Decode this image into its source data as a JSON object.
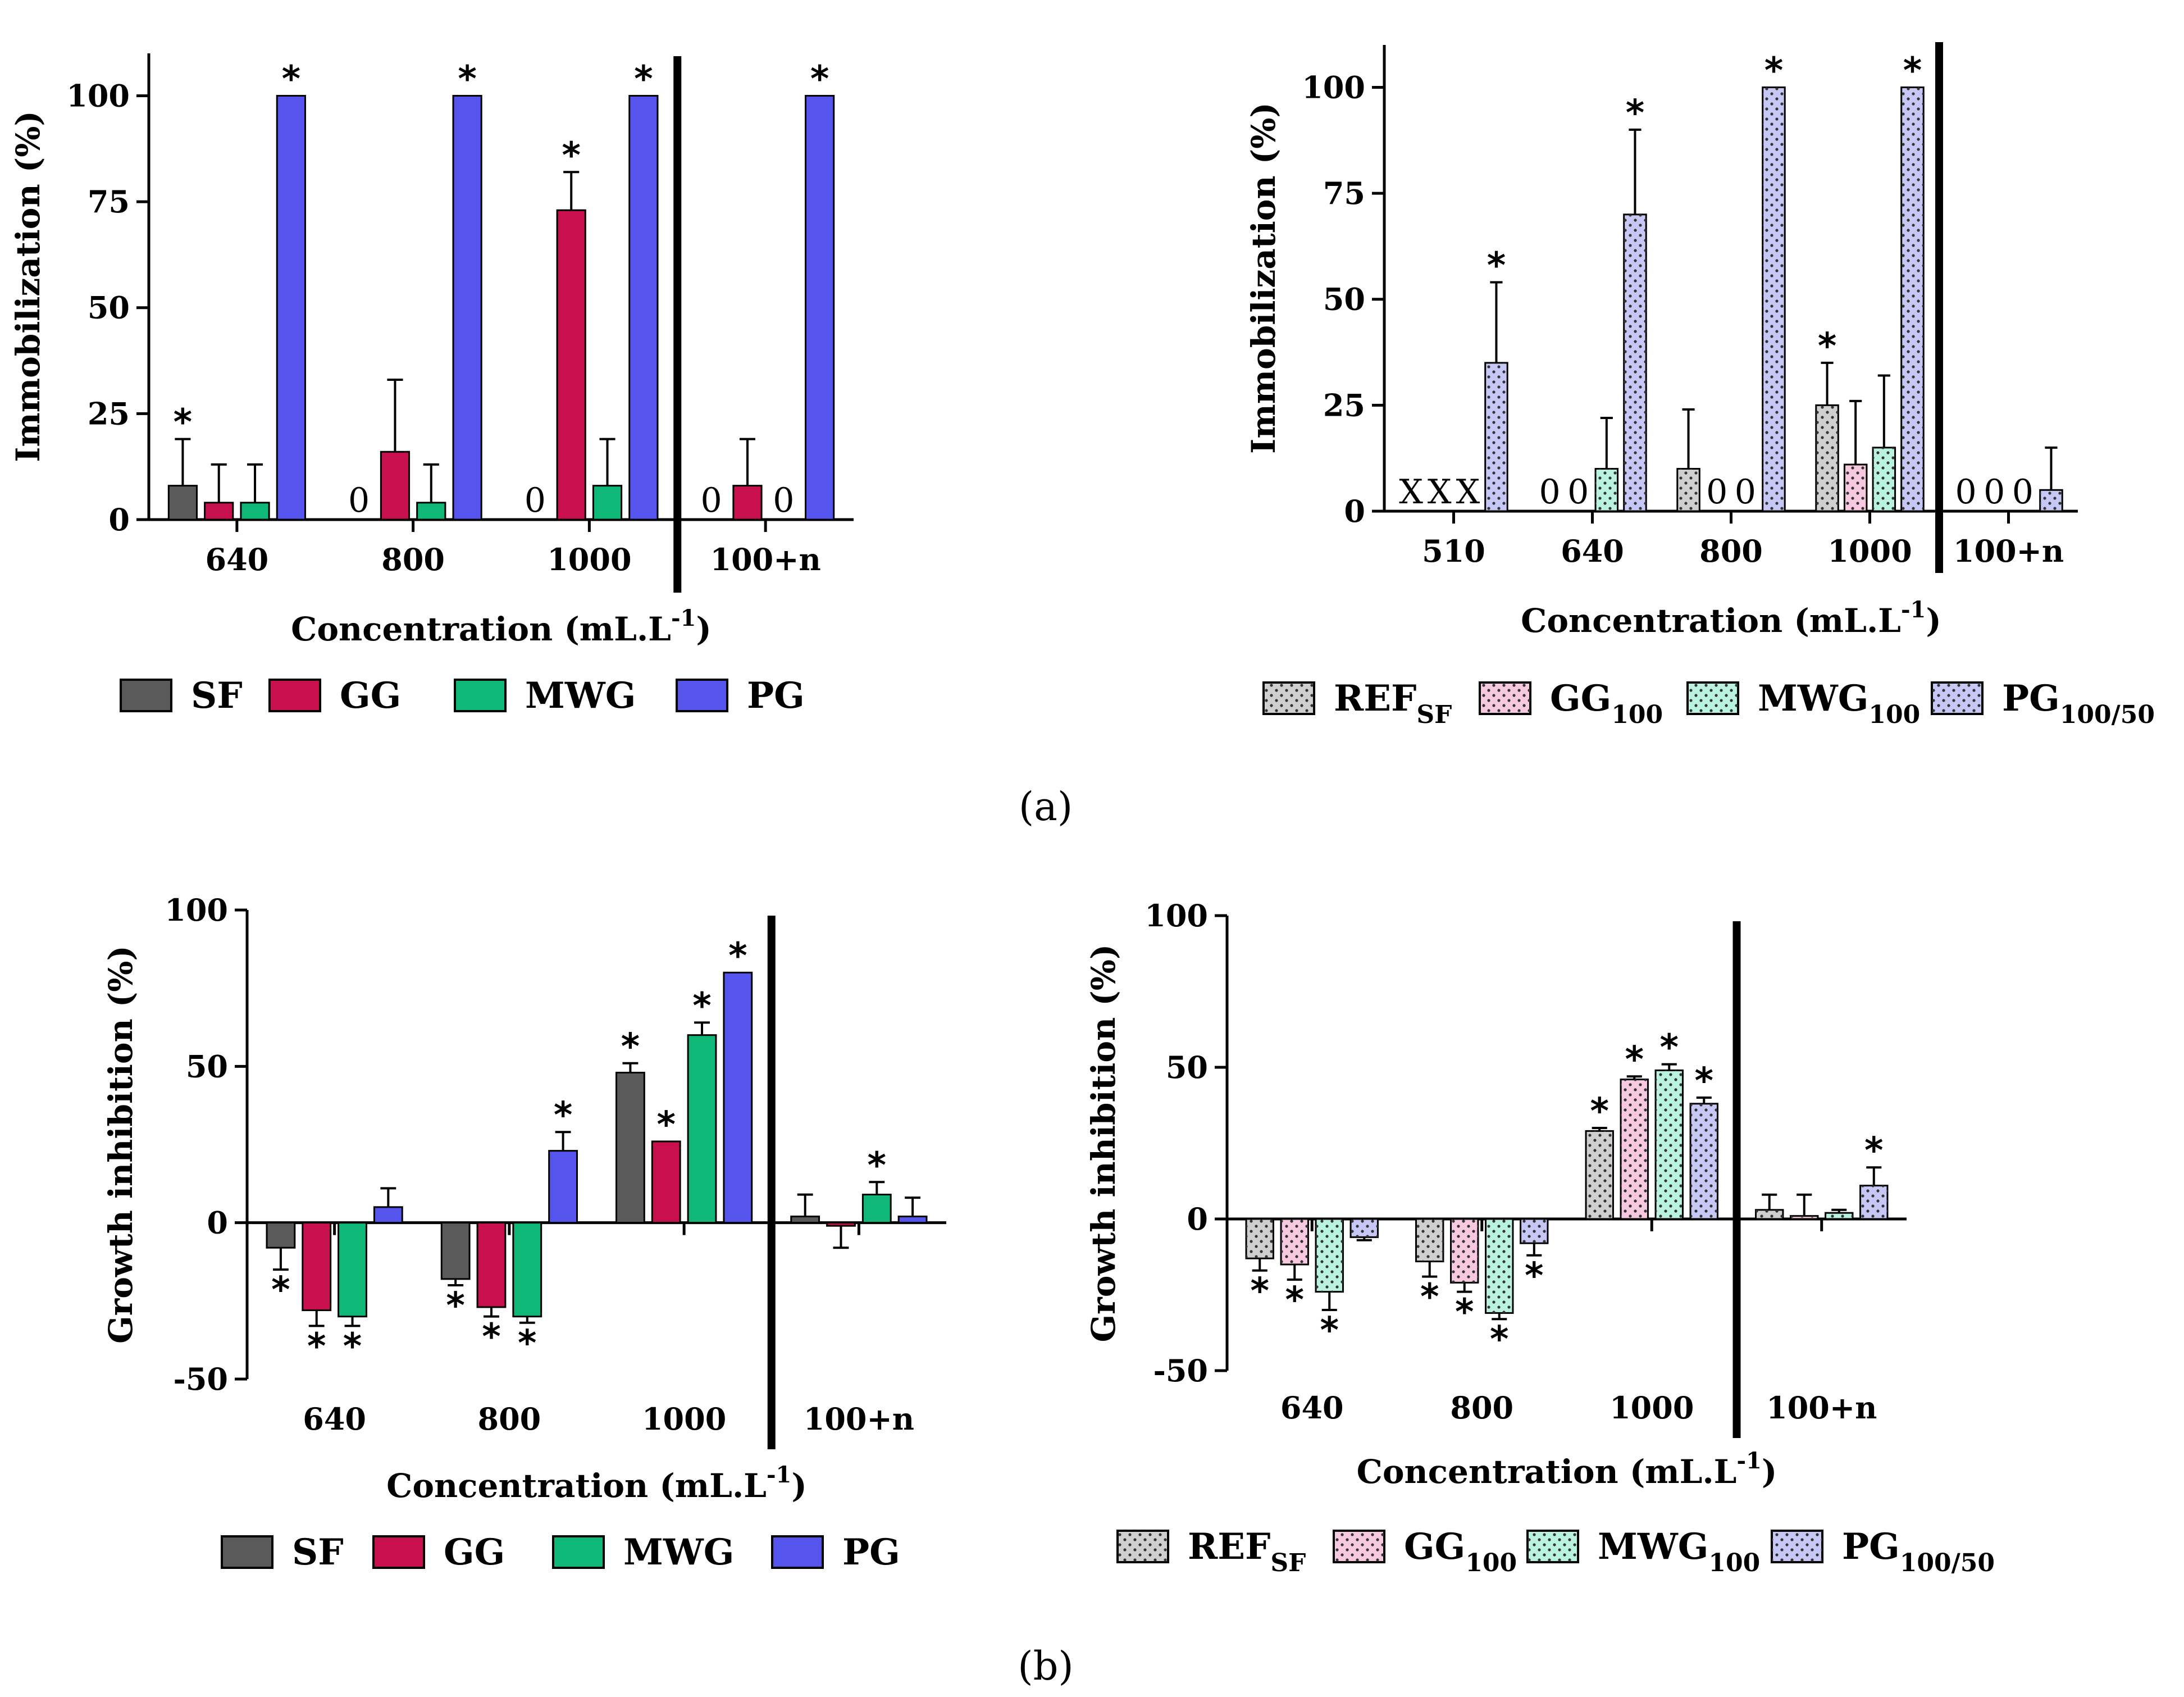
{
  "series_styles": {
    "solid": {
      "SF": {
        "fill": "#5a5a5a"
      },
      "GG": {
        "fill": "#c8104f"
      },
      "MWG": {
        "fill": "#10b878"
      },
      "PG": {
        "fill": "#5555ee"
      }
    },
    "dotted": {
      "REF": {
        "fill": "#cfcfcf"
      },
      "GG": {
        "fill": "#f7c9e0"
      },
      "MWG": {
        "fill": "#b9f3df"
      },
      "PG": {
        "fill": "#c7c7f5"
      }
    }
  },
  "panel_labels": {
    "a": "(a)",
    "b": "(b)"
  },
  "legends": {
    "solid": [
      {
        "key": "SF",
        "label": "SF"
      },
      {
        "key": "GG",
        "label": "GG"
      },
      {
        "key": "MWG",
        "label": "MWG"
      },
      {
        "key": "PG",
        "label": "PG"
      }
    ],
    "dotted": [
      {
        "key": "REF",
        "label": "REF",
        "sub": "SF"
      },
      {
        "key": "GG",
        "label": "GG",
        "sub": "100"
      },
      {
        "key": "MWG",
        "label": "MWG",
        "sub": "100"
      },
      {
        "key": "PG",
        "label": "PG",
        "sub": "100/50"
      }
    ]
  },
  "chart_data": [
    {
      "id": "chart-a-left",
      "type": "bar",
      "style": "solid",
      "ylabel": "Immobilization (%)",
      "xlabel": "Concentration (mL.L",
      "xlabel_sup": "-1",
      "xlabel_end": ")",
      "ylim": [
        0,
        110
      ],
      "yticks": [
        0,
        25,
        50,
        75,
        100
      ],
      "categories": [
        "640",
        "800",
        "1000",
        "100+n"
      ],
      "separator_before": 3,
      "series": [
        {
          "key": "SF",
          "name": "SF",
          "values": [
            8,
            0,
            0,
            0
          ],
          "errors": [
            11,
            0,
            0,
            0
          ],
          "stars": [
            true,
            false,
            false,
            false
          ],
          "zero_labels": [
            "",
            "0",
            "0",
            "0"
          ]
        },
        {
          "key": "GG",
          "name": "GG",
          "values": [
            4,
            16,
            73,
            8
          ],
          "errors": [
            9,
            17,
            9,
            11
          ],
          "stars": [
            false,
            false,
            true,
            false
          ],
          "zero_labels": [
            "",
            "",
            "",
            ""
          ]
        },
        {
          "key": "MWG",
          "name": "MWG",
          "values": [
            4,
            4,
            8,
            0
          ],
          "errors": [
            9,
            9,
            11,
            0
          ],
          "stars": [
            false,
            false,
            false,
            false
          ],
          "zero_labels": [
            "",
            "",
            "",
            "0"
          ]
        },
        {
          "key": "PG",
          "name": "PG",
          "values": [
            100,
            100,
            100,
            100
          ],
          "errors": [
            0,
            0,
            0,
            0
          ],
          "stars": [
            true,
            true,
            true,
            true
          ],
          "zero_labels": [
            "",
            "",
            "",
            ""
          ]
        }
      ]
    },
    {
      "id": "chart-a-right",
      "type": "bar",
      "style": "dotted",
      "ylabel": "Immobilization (%)",
      "xlabel": "Concentration (mL.L",
      "xlabel_sup": "-1",
      "xlabel_end": ")",
      "ylim": [
        0,
        110
      ],
      "yticks": [
        0,
        25,
        50,
        75,
        100
      ],
      "categories": [
        "510",
        "640",
        "800",
        "1000",
        "100+n"
      ],
      "separator_before": 4,
      "series": [
        {
          "key": "REF",
          "name": "REF SF",
          "values": [
            0,
            0,
            10,
            25,
            0
          ],
          "errors": [
            0,
            0,
            14,
            10,
            0
          ],
          "stars": [
            false,
            false,
            false,
            true,
            false
          ],
          "zero_labels": [
            "X",
            "0",
            "",
            "",
            "0"
          ]
        },
        {
          "key": "GG",
          "name": "GG 100",
          "values": [
            0,
            0,
            0,
            11,
            0
          ],
          "errors": [
            0,
            0,
            0,
            15,
            0
          ],
          "stars": [
            false,
            false,
            false,
            false,
            false
          ],
          "zero_labels": [
            "X",
            "0",
            "0",
            "",
            "0"
          ]
        },
        {
          "key": "MWG",
          "name": "MWG 100",
          "values": [
            0,
            10,
            0,
            15,
            0
          ],
          "errors": [
            0,
            12,
            0,
            17,
            0
          ],
          "stars": [
            false,
            false,
            false,
            false,
            false
          ],
          "zero_labels": [
            "X",
            "",
            "0",
            "",
            "0"
          ]
        },
        {
          "key": "PG",
          "name": "PG 100/50",
          "values": [
            35,
            70,
            100,
            100,
            5
          ],
          "errors": [
            19,
            20,
            0,
            0,
            10
          ],
          "stars": [
            true,
            true,
            true,
            true,
            false
          ],
          "zero_labels": [
            "",
            "",
            "",
            "",
            ""
          ]
        }
      ]
    },
    {
      "id": "chart-b-left",
      "type": "bar",
      "style": "solid",
      "ylabel": "Growth inhibition (%)",
      "xlabel": "Concentration (mL.L",
      "xlabel_sup": "-1",
      "xlabel_end": ")",
      "ylim": [
        -50,
        100
      ],
      "yticks": [
        -50,
        0,
        50,
        100
      ],
      "categories": [
        "640",
        "800",
        "1000",
        "100+n"
      ],
      "separator_before": 3,
      "series": [
        {
          "key": "SF",
          "name": "SF",
          "values": [
            -8,
            -18,
            48,
            2
          ],
          "errors": [
            7,
            2,
            3,
            7
          ],
          "stars": [
            true,
            true,
            true,
            false
          ],
          "zero_labels": [
            "",
            "",
            "",
            ""
          ]
        },
        {
          "key": "GG",
          "name": "GG",
          "values": [
            -28,
            -27,
            26,
            -1
          ],
          "errors": [
            5,
            3,
            0,
            7
          ],
          "stars": [
            true,
            true,
            true,
            false
          ],
          "zero_labels": [
            "",
            "",
            "",
            ""
          ]
        },
        {
          "key": "MWG",
          "name": "MWG",
          "values": [
            -30,
            -30,
            60,
            9
          ],
          "errors": [
            3,
            2,
            4,
            4
          ],
          "stars": [
            true,
            true,
            true,
            true
          ],
          "zero_labels": [
            "",
            "",
            "",
            ""
          ]
        },
        {
          "key": "PG",
          "name": "PG",
          "values": [
            5,
            23,
            80,
            2
          ],
          "errors": [
            6,
            6,
            0,
            6
          ],
          "stars": [
            false,
            true,
            true,
            false
          ],
          "zero_labels": [
            "",
            "",
            "",
            ""
          ]
        }
      ]
    },
    {
      "id": "chart-b-right",
      "type": "bar",
      "style": "dotted",
      "ylabel": "Growth inhibition (%)",
      "xlabel": "Concentration (mL.L",
      "xlabel_sup": "-1",
      "xlabel_end": ")",
      "ylim": [
        -50,
        100
      ],
      "yticks": [
        -50,
        0,
        50,
        100
      ],
      "categories": [
        "640",
        "800",
        "1000",
        "100+n"
      ],
      "separator_before": 3,
      "series": [
        {
          "key": "REF",
          "name": "REF SF",
          "values": [
            -13,
            -14,
            29,
            3
          ],
          "errors": [
            4,
            5,
            1,
            5
          ],
          "stars": [
            true,
            true,
            true,
            false
          ],
          "zero_labels": [
            "",
            "",
            "",
            ""
          ]
        },
        {
          "key": "GG",
          "name": "GG 100",
          "values": [
            -15,
            -21,
            46,
            1
          ],
          "errors": [
            5,
            3,
            1,
            7
          ],
          "stars": [
            true,
            true,
            true,
            false
          ],
          "zero_labels": [
            "",
            "",
            "",
            ""
          ]
        },
        {
          "key": "MWG",
          "name": "MWG 100",
          "values": [
            -24,
            -31,
            49,
            2
          ],
          "errors": [
            6,
            2,
            2,
            1
          ],
          "stars": [
            true,
            true,
            true,
            false
          ],
          "zero_labels": [
            "",
            "",
            "",
            ""
          ]
        },
        {
          "key": "PG",
          "name": "PG 100/50",
          "values": [
            -6,
            -8,
            38,
            11
          ],
          "errors": [
            1,
            4,
            2,
            6
          ],
          "stars": [
            false,
            true,
            true,
            true
          ],
          "zero_labels": [
            "",
            "",
            "",
            ""
          ]
        }
      ]
    }
  ]
}
